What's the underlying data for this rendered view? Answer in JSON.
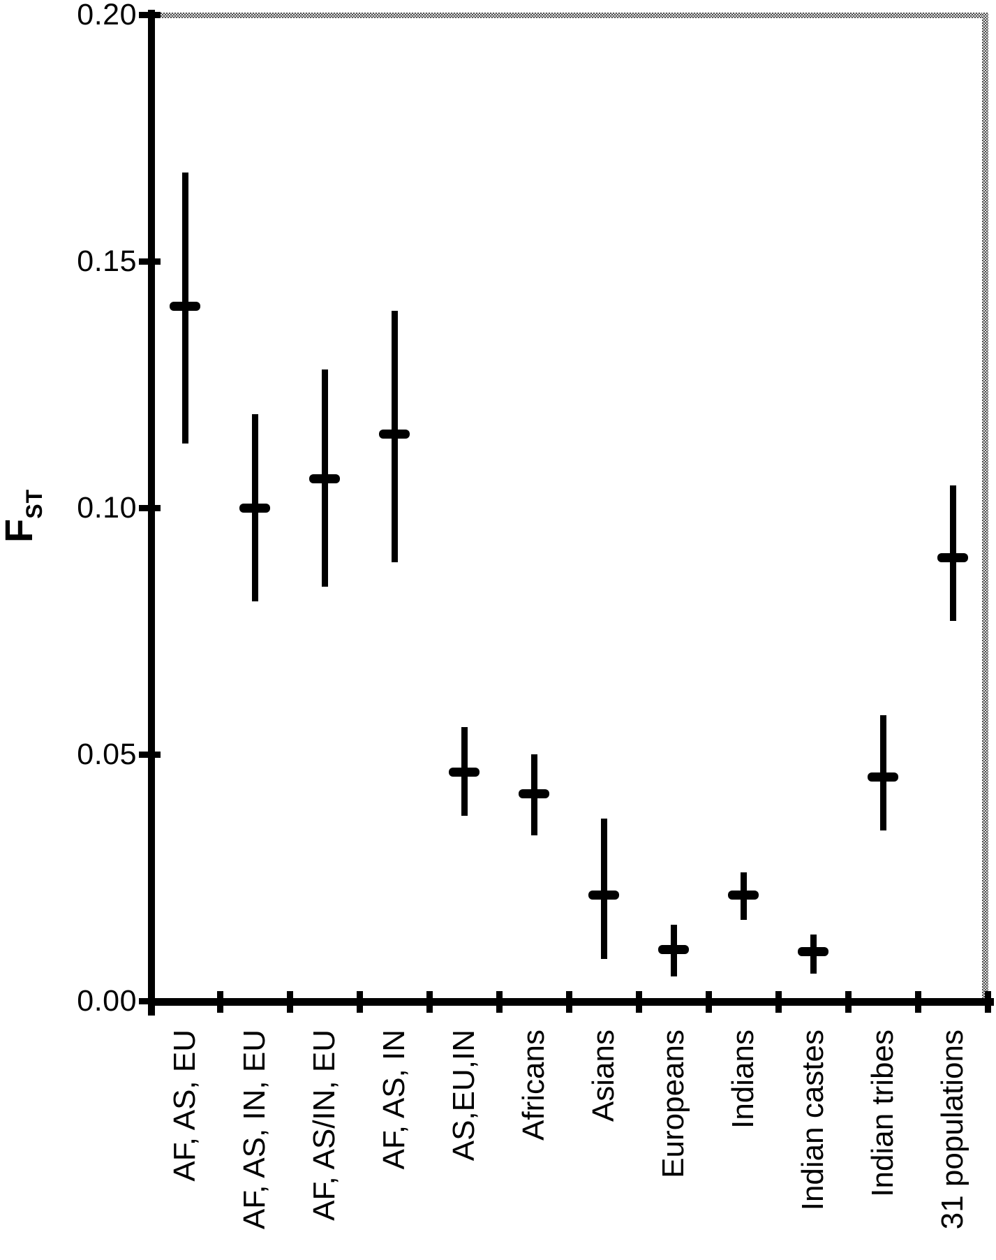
{
  "chart_data": {
    "type": "scatter",
    "title": "",
    "ylabel": {
      "main": "F",
      "sub": "ST"
    },
    "ylim": [
      0.0,
      0.2
    ],
    "yticks": {
      "values": [
        0.0,
        0.05,
        0.1,
        0.15,
        0.2
      ],
      "labels": [
        "0.00",
        "0.05",
        "0.10",
        "0.15",
        "0.20"
      ]
    },
    "grid": false,
    "legend": false,
    "marker_style": "horizontal dash at estimate with vertical confidence-interval line",
    "frame": {
      "left_axis": "solid black",
      "bottom_axis": "solid black",
      "top_border": "dithered gray",
      "right_border": "dithered gray"
    },
    "colors": {
      "foreground": "#000000",
      "background": "#ffffff",
      "dither_dark": "#4d4d4d",
      "dither_light": "#e3e3e3"
    },
    "categories": [
      "AF, AS, EU",
      "AF, AS, IN, EU",
      "AF, AS/IN, EU",
      "AF, AS, IN",
      "AS,EU,IN",
      "Africans",
      "Asians",
      "Europeans",
      "Indians",
      "Indian castes",
      "Indian tribes",
      "31 populations"
    ],
    "series": [
      {
        "name": "FST estimate",
        "values": [
          0.141,
          0.1,
          0.106,
          0.115,
          0.0465,
          0.042,
          0.0215,
          0.0105,
          0.0215,
          0.01,
          0.0455,
          0.09
        ],
        "ci_upper": [
          0.168,
          0.119,
          0.128,
          0.14,
          0.0555,
          0.05,
          0.037,
          0.0155,
          0.026,
          0.0135,
          0.058,
          0.1045
        ],
        "ci_lower": [
          0.113,
          0.081,
          0.084,
          0.089,
          0.0375,
          0.0335,
          0.0085,
          0.005,
          0.0165,
          0.0055,
          0.0345,
          0.077
        ]
      }
    ]
  }
}
